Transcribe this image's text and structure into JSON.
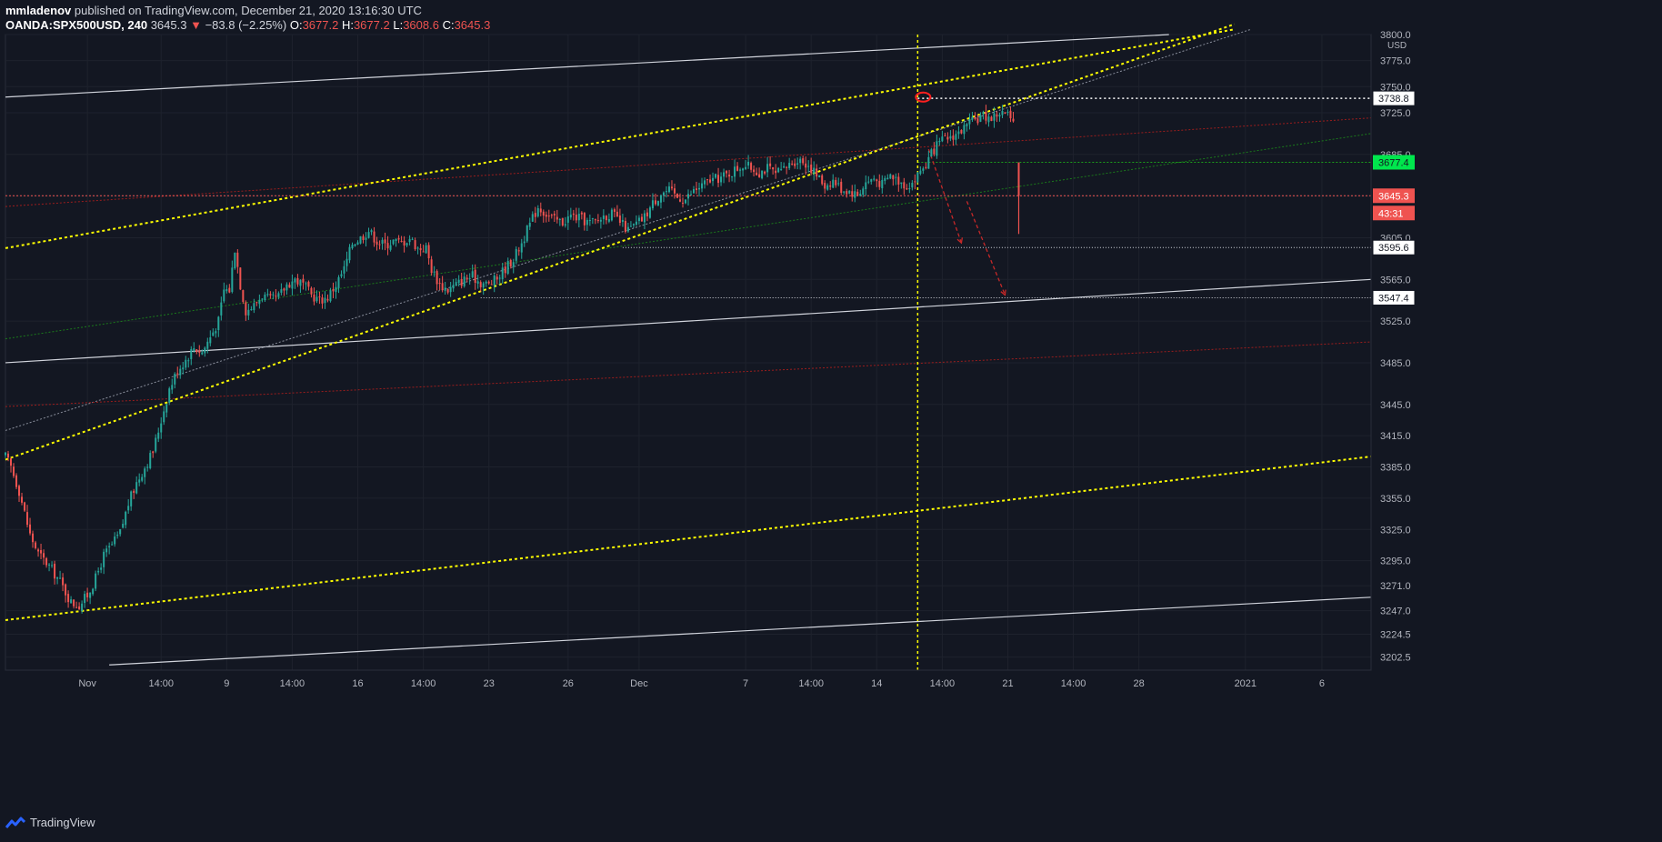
{
  "header": {
    "author": "mmladenov",
    "published": "published on TradingView.com, December 21, 2020 13:16:30 UTC",
    "symbol": "OANDA:SPX500USD, 240",
    "last": "3645.3",
    "arrow": "▼",
    "change": "−83.8 (−2.25%)",
    "o_label": "O:",
    "o": "3677.2",
    "h_label": "H:",
    "h": "3677.2",
    "l_label": "L:",
    "l": "3608.6",
    "c_label": "C:",
    "c": "3645.3"
  },
  "footer": {
    "brand": "TradingView",
    "logo_icon": "tradingview-logo-icon"
  },
  "colors": {
    "background": "#131722",
    "up": "#26a69a",
    "down": "#ef5350",
    "yellow": "#ffff00",
    "green_tag": "#00e64d",
    "red_tag": "#ef5350"
  },
  "chart_data": {
    "type": "candlestick",
    "symbol": "OANDA:SPX500USD",
    "interval": "240",
    "currency": "USD",
    "y_axis": {
      "range": [
        3190,
        3800
      ],
      "ticks": [
        "3800.0",
        "3775.0",
        "3750.0",
        "3725.0",
        "3685.0",
        "3645.0",
        "3605.0",
        "3565.0",
        "3525.0",
        "3485.0",
        "3445.0",
        "3415.0",
        "3385.0",
        "3355.0",
        "3325.0",
        "3295.0",
        "3271.0",
        "3247.0",
        "3224.5",
        "3202.5"
      ]
    },
    "x_axis": {
      "bar_range": [
        0,
        500
      ],
      "ticks": [
        {
          "label": "Nov",
          "bar": 30
        },
        {
          "label": "14:00",
          "bar": 57
        },
        {
          "label": "9",
          "bar": 81
        },
        {
          "label": "14:00",
          "bar": 105
        },
        {
          "label": "16",
          "bar": 129
        },
        {
          "label": "14:00",
          "bar": 153
        },
        {
          "label": "23",
          "bar": 177
        },
        {
          "label": "26",
          "bar": 206
        },
        {
          "label": "Dec",
          "bar": 232
        },
        {
          "label": "7",
          "bar": 271
        },
        {
          "label": "14:00",
          "bar": 295
        },
        {
          "label": "14",
          "bar": 319
        },
        {
          "label": "14:00",
          "bar": 343
        },
        {
          "label": "21",
          "bar": 367
        },
        {
          "label": "14:00",
          "bar": 391
        },
        {
          "label": "28",
          "bar": 415
        },
        {
          "label": "2021",
          "bar": 454
        },
        {
          "label": "6",
          "bar": 482
        }
      ]
    },
    "price_path": [
      [
        0,
        3395
      ],
      [
        2,
        3385
      ],
      [
        5,
        3362
      ],
      [
        9,
        3320
      ],
      [
        12,
        3302
      ],
      [
        16,
        3290
      ],
      [
        20,
        3275
      ],
      [
        24,
        3255
      ],
      [
        27,
        3252
      ],
      [
        30,
        3262
      ],
      [
        33,
        3278
      ],
      [
        36,
        3300
      ],
      [
        39,
        3310
      ],
      [
        42,
        3322
      ],
      [
        45,
        3350
      ],
      [
        48,
        3370
      ],
      [
        51,
        3385
      ],
      [
        54,
        3400
      ],
      [
        57,
        3430
      ],
      [
        60,
        3460
      ],
      [
        63,
        3478
      ],
      [
        66,
        3488
      ],
      [
        69,
        3500
      ],
      [
        72,
        3495
      ],
      [
        75,
        3510
      ],
      [
        78,
        3525
      ],
      [
        80,
        3555
      ],
      [
        82,
        3555
      ],
      [
        84,
        3595
      ],
      [
        86,
        3560
      ],
      [
        88,
        3535
      ],
      [
        91,
        3540
      ],
      [
        94,
        3550
      ],
      [
        97,
        3545
      ],
      [
        100,
        3548
      ],
      [
        103,
        3560
      ],
      [
        106,
        3565
      ],
      [
        109,
        3560
      ],
      [
        112,
        3550
      ],
      [
        115,
        3545
      ],
      [
        118,
        3548
      ],
      [
        121,
        3560
      ],
      [
        124,
        3575
      ],
      [
        127,
        3600
      ],
      [
        130,
        3605
      ],
      [
        133,
        3612
      ],
      [
        136,
        3602
      ],
      [
        139,
        3598
      ],
      [
        142,
        3602
      ],
      [
        145,
        3600
      ],
      [
        148,
        3605
      ],
      [
        151,
        3595
      ],
      [
        154,
        3595
      ],
      [
        156,
        3575
      ],
      [
        159,
        3560
      ],
      [
        162,
        3555
      ],
      [
        165,
        3560
      ],
      [
        168,
        3565
      ],
      [
        171,
        3568
      ],
      [
        174,
        3562
      ],
      [
        177,
        3560
      ],
      [
        180,
        3566
      ],
      [
        183,
        3576
      ],
      [
        186,
        3585
      ],
      [
        189,
        3600
      ],
      [
        192,
        3618
      ],
      [
        195,
        3635
      ],
      [
        198,
        3628
      ],
      [
        201,
        3622
      ],
      [
        204,
        3620
      ],
      [
        207,
        3626
      ],
      [
        210,
        3624
      ],
      [
        213,
        3620
      ],
      [
        216,
        3620
      ],
      [
        219,
        3626
      ],
      [
        222,
        3628
      ],
      [
        225,
        3620
      ],
      [
        228,
        3612
      ],
      [
        231,
        3618
      ],
      [
        234,
        3625
      ],
      [
        237,
        3638
      ],
      [
        240,
        3648
      ],
      [
        243,
        3650
      ],
      [
        246,
        3644
      ],
      [
        249,
        3642
      ],
      [
        252,
        3650
      ],
      [
        255,
        3655
      ],
      [
        258,
        3660
      ],
      [
        261,
        3662
      ],
      [
        264,
        3665
      ],
      [
        267,
        3670
      ],
      [
        270,
        3675
      ],
      [
        273,
        3672
      ],
      [
        276,
        3668
      ],
      [
        279,
        3672
      ],
      [
        282,
        3666
      ],
      [
        285,
        3670
      ],
      [
        288,
        3678
      ],
      [
        291,
        3680
      ],
      [
        294,
        3675
      ],
      [
        297,
        3665
      ],
      [
        300,
        3655
      ],
      [
        303,
        3660
      ],
      [
        306,
        3652
      ],
      [
        309,
        3650
      ],
      [
        312,
        3646
      ],
      [
        315,
        3658
      ],
      [
        318,
        3662
      ],
      [
        321,
        3656
      ],
      [
        324,
        3665
      ],
      [
        327,
        3660
      ],
      [
        330,
        3655
      ],
      [
        333,
        3660
      ],
      [
        335,
        3670
      ],
      [
        337,
        3675
      ],
      [
        340,
        3690
      ],
      [
        343,
        3698
      ],
      [
        346,
        3702
      ],
      [
        349,
        3706
      ],
      [
        352,
        3712
      ],
      [
        355,
        3718
      ],
      [
        358,
        3722
      ],
      [
        361,
        3720
      ],
      [
        364,
        3725
      ],
      [
        367,
        3723
      ],
      [
        368,
        3718
      ],
      [
        369,
        3712
      ]
    ],
    "last_bar": {
      "bar": 371,
      "o": 3677.2,
      "h": 3677.2,
      "l": 3608.6,
      "c": 3645.3
    },
    "drawings": {
      "upper_channel_top": {
        "from": [
          0,
          3740
        ],
        "to": [
          426,
          3800
        ]
      },
      "channel_yellow_top": {
        "from": [
          0,
          3595
        ],
        "to": [
          450,
          3805
        ]
      },
      "channel_yellow_mid": {
        "from": [
          0,
          3392
        ],
        "to": [
          450,
          3810
        ]
      },
      "channel_yellow_low": {
        "from": [
          0,
          3238
        ],
        "to": [
          500,
          3395
        ]
      },
      "white_thin_trend": {
        "from": [
          0,
          3420
        ],
        "to": [
          456,
          3805
        ]
      },
      "white_solid_mid": {
        "from": [
          0,
          3485
        ],
        "to": [
          500,
          3565
        ]
      },
      "white_solid_low": {
        "from": [
          38,
          3195
        ],
        "to": [
          500,
          3260
        ]
      },
      "red_dotted_upper": {
        "from": [
          0,
          3635
        ],
        "to": [
          500,
          3720
        ]
      },
      "red_dotted_lower": {
        "from": [
          0,
          3443
        ],
        "to": [
          500,
          3505
        ]
      },
      "green_dotted": {
        "from": [
          0,
          3508
        ],
        "to": [
          500,
          3705
        ]
      },
      "red_horizontal": {
        "price": 3645.3
      },
      "green_horizontal": {
        "price": 3677.4,
        "from_bar": 334
      },
      "resistance_line": {
        "price": 3738.8,
        "from_bar": 334
      },
      "support_1": {
        "price": 3595.6,
        "from_bar": 226
      },
      "support_2": {
        "price": 3547.4,
        "from_bar": 174
      },
      "vertical_marker": {
        "bar": 334
      },
      "circle_marker": {
        "bar": 336,
        "price": 3740
      },
      "arrow_1": {
        "from": [
          338,
          3690
        ],
        "to": [
          350,
          3600
        ]
      },
      "arrow_2": {
        "from": [
          352,
          3640
        ],
        "to": [
          366,
          3550
        ]
      }
    },
    "price_tags": [
      {
        "label": "3738.8",
        "price": 3738.8,
        "style": "white"
      },
      {
        "label": "3677.4",
        "price": 3677.4,
        "style": "green"
      },
      {
        "label": "3645.3",
        "price": 3645.3,
        "style": "red"
      },
      {
        "label": "43:31",
        "price": 3645.3,
        "style": "red-countdown"
      },
      {
        "label": "3595.6",
        "price": 3595.6,
        "style": "white"
      },
      {
        "label": "3547.4",
        "price": 3547.4,
        "style": "white"
      }
    ]
  }
}
